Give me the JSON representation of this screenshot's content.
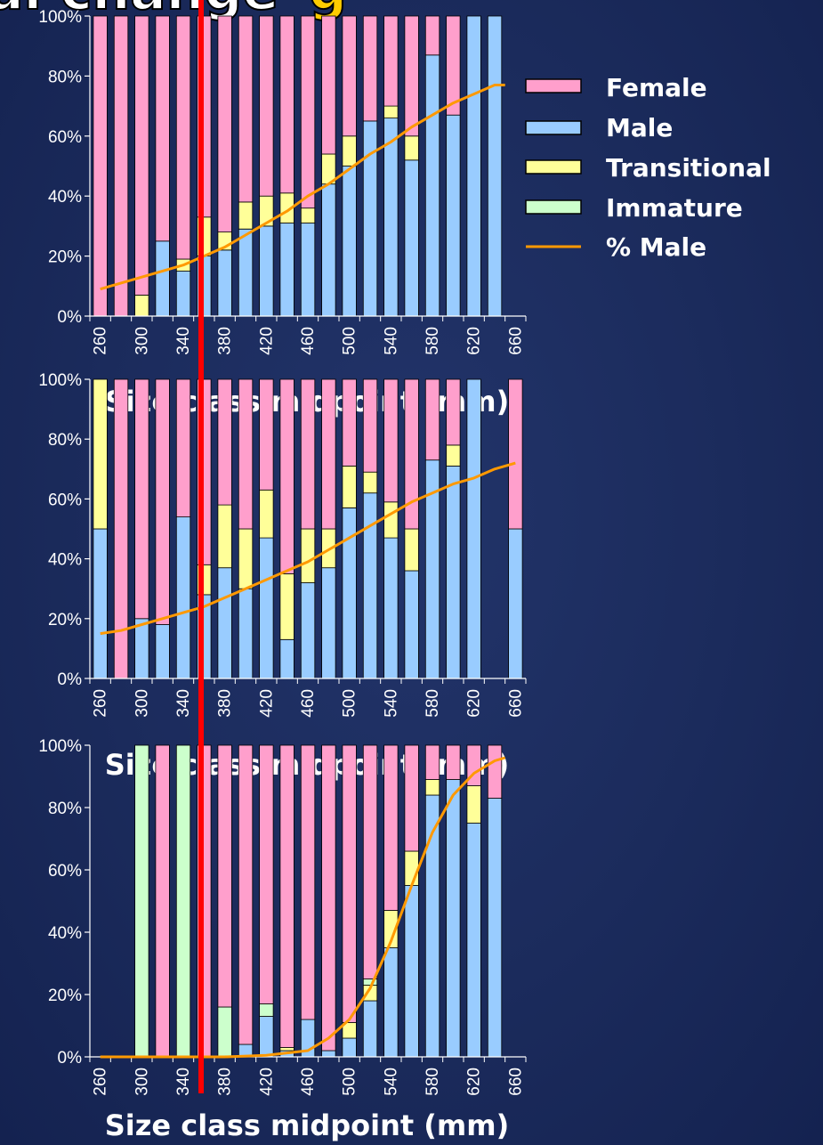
{
  "slide": {
    "title_fragment_1": "al change",
    "title_fragment_2": "g",
    "colors": {
      "female": "#ff9fcc",
      "male": "#99ccff",
      "transitional": "#ffff99",
      "immature": "#ccffcc",
      "pct_male_line": "#ff9900",
      "divider": "#ff0000",
      "background": "#1b2b5c"
    }
  },
  "legend": [
    {
      "label": "Female",
      "color": "#ff9fcc",
      "kind": "box"
    },
    {
      "label": "Male",
      "color": "#99ccff",
      "kind": "box"
    },
    {
      "label": "Transitional",
      "color": "#ffff99",
      "kind": "box"
    },
    {
      "label": "Immature",
      "color": "#ccffcc",
      "kind": "box"
    },
    {
      "label": "% Male",
      "color": "#ff9900",
      "kind": "line"
    }
  ],
  "chart_data": [
    {
      "type": "bar",
      "stacked": "percent",
      "title": "",
      "xlabel": "Size class midpoint (mm)",
      "ylabel": "",
      "ylim": [
        0,
        100
      ],
      "yticks": [
        "0%",
        "20%",
        "40%",
        "60%",
        "80%",
        "100%"
      ],
      "xtick_labels": [
        "260",
        "300",
        "340",
        "380",
        "420",
        "460",
        "500",
        "540",
        "580",
        "620",
        "660"
      ],
      "categories": [
        250,
        270,
        290,
        310,
        330,
        350,
        370,
        390,
        410,
        430,
        450,
        470,
        490,
        510,
        530,
        550,
        570,
        590,
        610,
        630
      ],
      "series": [
        {
          "name": "Male",
          "values": [
            0,
            0,
            0,
            25,
            15,
            20,
            22,
            29,
            30,
            31,
            31,
            44,
            50,
            65,
            66,
            52,
            87,
            67,
            100,
            100
          ]
        },
        {
          "name": "Transitional",
          "values": [
            0,
            0,
            7,
            0,
            4,
            13,
            6,
            9,
            10,
            10,
            5,
            10,
            10,
            0,
            4,
            8,
            0,
            0,
            0,
            0
          ]
        },
        {
          "name": "Immature",
          "values": [
            0,
            0,
            0,
            0,
            0,
            0,
            0,
            0,
            0,
            0,
            0,
            0,
            0,
            0,
            0,
            0,
            0,
            0,
            0,
            0
          ]
        },
        {
          "name": "Female",
          "values": [
            100,
            100,
            93,
            75,
            81,
            67,
            72,
            62,
            60,
            59,
            64,
            46,
            40,
            35,
            30,
            40,
            13,
            33,
            0,
            0
          ]
        }
      ],
      "line": {
        "name": "% Male",
        "x": [
          250,
          270,
          290,
          310,
          330,
          350,
          370,
          390,
          410,
          430,
          450,
          470,
          490,
          510,
          530,
          550,
          570,
          590,
          610,
          630,
          640
        ],
        "y": [
          9,
          11,
          13,
          15,
          17,
          20,
          23,
          27,
          31,
          35,
          40,
          44,
          49,
          54,
          58,
          63,
          67,
          71,
          74,
          77,
          77
        ]
      }
    },
    {
      "type": "bar",
      "stacked": "percent",
      "title": "",
      "xlabel": "Size class midpoint (mm)",
      "ylabel": "",
      "ylim": [
        0,
        100
      ],
      "yticks": [
        "0%",
        "20%",
        "40%",
        "60%",
        "80%",
        "100%"
      ],
      "xtick_labels": [
        "260",
        "300",
        "340",
        "380",
        "420",
        "460",
        "500",
        "540",
        "580",
        "620",
        "660"
      ],
      "categories": [
        250,
        270,
        290,
        310,
        330,
        350,
        370,
        390,
        410,
        430,
        450,
        470,
        490,
        510,
        530,
        550,
        570,
        590,
        610,
        650
      ],
      "series": [
        {
          "name": "Male",
          "values": [
            50,
            0,
            20,
            18,
            54,
            28,
            37,
            30,
            47,
            13,
            32,
            37,
            57,
            62,
            47,
            36,
            73,
            71,
            100,
            50
          ]
        },
        {
          "name": "Transitional",
          "values": [
            50,
            0,
            0,
            0,
            0,
            10,
            21,
            20,
            16,
            22,
            18,
            13,
            14,
            7,
            12,
            14,
            0,
            7,
            0,
            0
          ]
        },
        {
          "name": "Immature",
          "values": [
            0,
            0,
            0,
            0,
            0,
            0,
            0,
            0,
            0,
            0,
            0,
            0,
            0,
            0,
            0,
            0,
            0,
            0,
            0,
            0
          ]
        },
        {
          "name": "Female",
          "values": [
            0,
            100,
            80,
            82,
            46,
            62,
            42,
            50,
            37,
            65,
            50,
            50,
            29,
            31,
            41,
            50,
            27,
            22,
            0,
            50
          ]
        }
      ],
      "line": {
        "name": "% Male",
        "x": [
          250,
          270,
          290,
          310,
          330,
          350,
          370,
          390,
          410,
          430,
          450,
          470,
          490,
          510,
          530,
          550,
          570,
          590,
          610,
          630,
          650
        ],
        "y": [
          15,
          16,
          18,
          20,
          22,
          24,
          27,
          30,
          33,
          36,
          39,
          43,
          47,
          51,
          55,
          59,
          62,
          65,
          67,
          70,
          72
        ]
      }
    },
    {
      "type": "bar",
      "stacked": "percent",
      "title": "",
      "xlabel": "Size class midpoint (mm)",
      "ylabel": "",
      "ylim": [
        0,
        100
      ],
      "yticks": [
        "0%",
        "20%",
        "40%",
        "60%",
        "80%",
        "100%"
      ],
      "xtick_labels": [
        "260",
        "300",
        "340",
        "380",
        "420",
        "460",
        "500",
        "540",
        "580",
        "620",
        "660"
      ],
      "categories": [
        290,
        310,
        330,
        350,
        370,
        390,
        410,
        430,
        450,
        470,
        490,
        510,
        530,
        550,
        570,
        590,
        610,
        630
      ],
      "series": [
        {
          "name": "Male",
          "values": [
            0,
            0,
            0,
            0,
            0,
            4,
            13,
            2,
            12,
            2,
            6,
            18,
            35,
            55,
            84,
            89,
            75,
            83
          ]
        },
        {
          "name": "Transitional",
          "values": [
            0,
            0,
            0,
            0,
            0,
            0,
            0,
            1,
            0,
            0,
            5,
            5,
            12,
            11,
            5,
            0,
            12,
            0
          ]
        },
        {
          "name": "Immature",
          "values": [
            100,
            0,
            100,
            0,
            16,
            0,
            4,
            0,
            0,
            0,
            0,
            2,
            0,
            0,
            0,
            0,
            0,
            0
          ]
        },
        {
          "name": "Female",
          "values": [
            0,
            100,
            0,
            100,
            84,
            96,
            83,
            97,
            88,
            98,
            89,
            75,
            53,
            34,
            11,
            11,
            13,
            17
          ]
        }
      ],
      "line": {
        "name": "% Male",
        "x": [
          250,
          290,
          330,
          370,
          410,
          450,
          470,
          490,
          510,
          530,
          550,
          570,
          590,
          610,
          630,
          640
        ],
        "y": [
          0,
          0,
          0,
          0,
          0.5,
          2,
          6,
          12,
          22,
          37,
          55,
          72,
          84,
          91,
          95,
          96
        ]
      }
    }
  ]
}
